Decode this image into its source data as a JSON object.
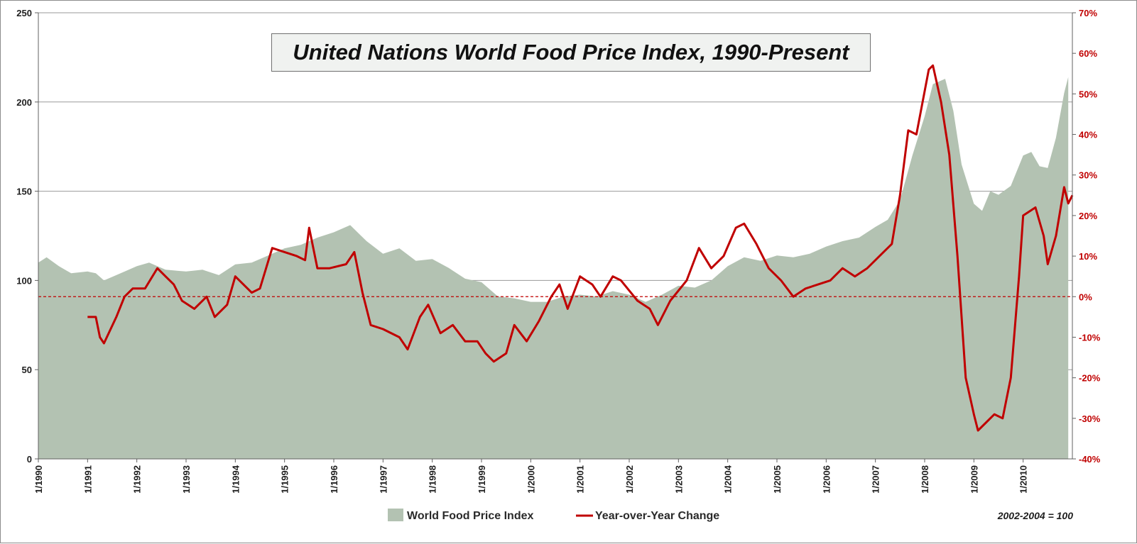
{
  "chart_data": {
    "type": "area",
    "title": "United Nations World Food Price Index, 1990-Present",
    "footnote": "2002-2004 = 100",
    "y_left": {
      "ticks": [
        0,
        50,
        100,
        150,
        200,
        250
      ],
      "tick_labels": [
        "0",
        "50",
        "100",
        "150",
        "200",
        "250"
      ],
      "ylim": [
        0,
        250
      ]
    },
    "y_right": {
      "ticks": [
        -40,
        -30,
        -20,
        -10,
        0,
        10,
        20,
        30,
        40,
        50,
        60,
        70
      ],
      "tick_labels": [
        "-40%",
        "-30%",
        "-20%",
        "-10%",
        "0%",
        "10%",
        "20%",
        "30%",
        "40%",
        "50%",
        "60%",
        "70%"
      ],
      "ylim": [
        -40,
        70
      ]
    },
    "x_ticks": [
      "1/1990",
      "1/1991",
      "1/1992",
      "1/1993",
      "1/1994",
      "1/1995",
      "1/1996",
      "1/1997",
      "1/1998",
      "1/1999",
      "1/2000",
      "1/2001",
      "1/2002",
      "1/2003",
      "1/2004",
      "1/2005",
      "1/2006",
      "1/2007",
      "1/2008",
      "1/2009",
      "1/2010"
    ],
    "x_range": [
      "1/1990",
      "12/2010"
    ],
    "grid": "horizontal",
    "legend_position": "bottom",
    "series": [
      {
        "name": "World Food Price Index",
        "kind": "area",
        "axis": "left",
        "color": "#b3c2b2",
        "points": [
          [
            "1/1990",
            110
          ],
          [
            "3/1990",
            113
          ],
          [
            "6/1990",
            108
          ],
          [
            "9/1990",
            104
          ],
          [
            "1/1991",
            105
          ],
          [
            "3/1991",
            104
          ],
          [
            "5/1991",
            100
          ],
          [
            "8/1991",
            103
          ],
          [
            "1/1992",
            108
          ],
          [
            "4/1992",
            110
          ],
          [
            "8/1992",
            106
          ],
          [
            "1/1993",
            105
          ],
          [
            "5/1993",
            106
          ],
          [
            "9/1993",
            103
          ],
          [
            "1/1994",
            109
          ],
          [
            "5/1994",
            110
          ],
          [
            "9/1994",
            114
          ],
          [
            "1/1995",
            118
          ],
          [
            "5/1995",
            120
          ],
          [
            "9/1995",
            124
          ],
          [
            "1/1996",
            127
          ],
          [
            "5/1996",
            131
          ],
          [
            "9/1996",
            122
          ],
          [
            "1/1997",
            115
          ],
          [
            "5/1997",
            118
          ],
          [
            "9/1997",
            111
          ],
          [
            "1/1998",
            112
          ],
          [
            "5/1998",
            107
          ],
          [
            "9/1998",
            101
          ],
          [
            "1/1999",
            99
          ],
          [
            "5/1999",
            91
          ],
          [
            "9/1999",
            90
          ],
          [
            "1/2000",
            88
          ],
          [
            "5/2000",
            88
          ],
          [
            "9/2000",
            91
          ],
          [
            "1/2001",
            92
          ],
          [
            "5/2001",
            91
          ],
          [
            "9/2001",
            94
          ],
          [
            "1/2002",
            92
          ],
          [
            "5/2002",
            88
          ],
          [
            "9/2002",
            92
          ],
          [
            "1/2003",
            97
          ],
          [
            "5/2003",
            96
          ],
          [
            "9/2003",
            100
          ],
          [
            "1/2004",
            108
          ],
          [
            "5/2004",
            113
          ],
          [
            "9/2004",
            111
          ],
          [
            "1/2005",
            114
          ],
          [
            "5/2005",
            113
          ],
          [
            "9/2005",
            115
          ],
          [
            "1/2006",
            119
          ],
          [
            "5/2006",
            122
          ],
          [
            "9/2006",
            124
          ],
          [
            "1/2007",
            130
          ],
          [
            "4/2007",
            134
          ],
          [
            "7/2007",
            145
          ],
          [
            "10/2007",
            170
          ],
          [
            "1/2008",
            192
          ],
          [
            "3/2008",
            210
          ],
          [
            "6/2008",
            213
          ],
          [
            "8/2008",
            195
          ],
          [
            "10/2008",
            165
          ],
          [
            "1/2009",
            143
          ],
          [
            "3/2009",
            139
          ],
          [
            "5/2009",
            150
          ],
          [
            "7/2009",
            148
          ],
          [
            "10/2009",
            153
          ],
          [
            "1/2010",
            170
          ],
          [
            "3/2010",
            172
          ],
          [
            "5/2010",
            164
          ],
          [
            "7/2010",
            163
          ],
          [
            "9/2010",
            180
          ],
          [
            "11/2010",
            205
          ],
          [
            "12/2010",
            214
          ]
        ]
      },
      {
        "name": "Year-over-Year Change",
        "kind": "line",
        "axis": "right",
        "color": "#c00000",
        "points": [
          [
            "1/1991",
            -5
          ],
          [
            "3/1991",
            -5
          ],
          [
            "4/1991",
            -10
          ],
          [
            "5/1991",
            -11.5
          ],
          [
            "8/1991",
            -5
          ],
          [
            "10/1991",
            0
          ],
          [
            "12/1991",
            2
          ],
          [
            "3/1992",
            2
          ],
          [
            "6/1992",
            7
          ],
          [
            "8/1992",
            5
          ],
          [
            "10/1992",
            3
          ],
          [
            "12/1992",
            -1
          ],
          [
            "3/1993",
            -3
          ],
          [
            "6/1993",
            0
          ],
          [
            "8/1993",
            -5
          ],
          [
            "11/1993",
            -2
          ],
          [
            "1/1994",
            5
          ],
          [
            "5/1994",
            1
          ],
          [
            "7/1994",
            2
          ],
          [
            "10/1994",
            12
          ],
          [
            "1/1995",
            11
          ],
          [
            "4/1995",
            10
          ],
          [
            "6/1995",
            9
          ],
          [
            "7/1995",
            17
          ],
          [
            "9/1995",
            7
          ],
          [
            "12/1995",
            7
          ],
          [
            "4/1996",
            8
          ],
          [
            "6/1996",
            11
          ],
          [
            "8/1996",
            1
          ],
          [
            "10/1996",
            -7
          ],
          [
            "1/1997",
            -8
          ],
          [
            "5/1997",
            -10
          ],
          [
            "7/1997",
            -13
          ],
          [
            "10/1997",
            -5
          ],
          [
            "12/1997",
            -2
          ],
          [
            "3/1998",
            -9
          ],
          [
            "6/1998",
            -7
          ],
          [
            "9/1998",
            -11
          ],
          [
            "12/1998",
            -11
          ],
          [
            "2/1999",
            -14
          ],
          [
            "4/1999",
            -16
          ],
          [
            "7/1999",
            -14
          ],
          [
            "9/1999",
            -7
          ],
          [
            "12/1999",
            -11
          ],
          [
            "3/2000",
            -6
          ],
          [
            "6/2000",
            0
          ],
          [
            "8/2000",
            3
          ],
          [
            "10/2000",
            -3
          ],
          [
            "1/2001",
            5
          ],
          [
            "4/2001",
            3
          ],
          [
            "6/2001",
            0
          ],
          [
            "9/2001",
            5
          ],
          [
            "11/2001",
            4
          ],
          [
            "3/2002",
            -1
          ],
          [
            "6/2002",
            -3
          ],
          [
            "8/2002",
            -7
          ],
          [
            "11/2002",
            -1
          ],
          [
            "3/2003",
            4
          ],
          [
            "6/2003",
            12
          ],
          [
            "9/2003",
            7
          ],
          [
            "12/2003",
            10
          ],
          [
            "3/2004",
            17
          ],
          [
            "5/2004",
            18
          ],
          [
            "8/2004",
            13
          ],
          [
            "11/2004",
            7
          ],
          [
            "2/2005",
            4
          ],
          [
            "5/2005",
            0
          ],
          [
            "8/2005",
            2
          ],
          [
            "11/2005",
            3
          ],
          [
            "2/2006",
            4
          ],
          [
            "5/2006",
            7
          ],
          [
            "8/2006",
            5
          ],
          [
            "11/2006",
            7
          ],
          [
            "2/2007",
            10
          ],
          [
            "5/2007",
            13
          ],
          [
            "7/2007",
            25
          ],
          [
            "9/2007",
            41
          ],
          [
            "11/2007",
            40
          ],
          [
            "2/2008",
            56
          ],
          [
            "3/2008",
            57
          ],
          [
            "5/2008",
            48
          ],
          [
            "7/2008",
            35
          ],
          [
            "9/2008",
            10
          ],
          [
            "11/2008",
            -20
          ],
          [
            "1/2009",
            -29
          ],
          [
            "2/2009",
            -33
          ],
          [
            "4/2009",
            -31
          ],
          [
            "6/2009",
            -29
          ],
          [
            "8/2009",
            -30
          ],
          [
            "10/2009",
            -20
          ],
          [
            "12/2009",
            5
          ],
          [
            "1/2010",
            20
          ],
          [
            "4/2010",
            22
          ],
          [
            "6/2010",
            15
          ],
          [
            "7/2010",
            8
          ],
          [
            "9/2010",
            15
          ],
          [
            "11/2010",
            27
          ],
          [
            "12/2010",
            23
          ],
          [
            "1/2011",
            25
          ]
        ]
      }
    ],
    "reference_line": {
      "axis": "right",
      "value": 0,
      "style": "dashed",
      "color": "#c00000"
    }
  }
}
